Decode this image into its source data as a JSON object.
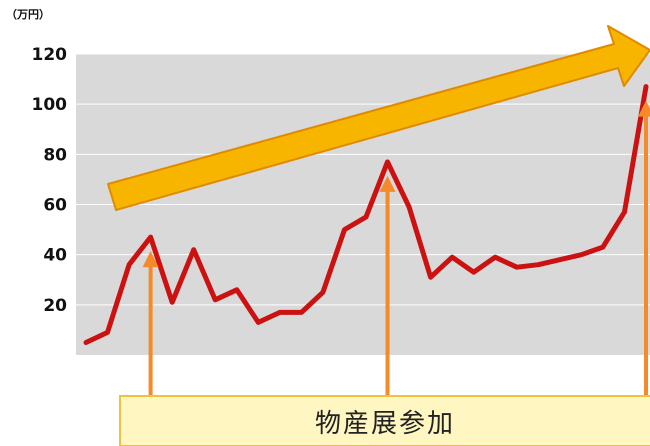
{
  "chart_data": {
    "type": "line",
    "y_unit_label": "（万円）",
    "ylim": [
      0,
      120
    ],
    "y_ticks": [
      20,
      40,
      60,
      80,
      100,
      120
    ],
    "grid": true,
    "series": [
      {
        "color": "#cc1111",
        "values": [
          5,
          9,
          36,
          47,
          21,
          42,
          22,
          26,
          13,
          17,
          17,
          25,
          50,
          55,
          77,
          59,
          31,
          39,
          33,
          39,
          35,
          36,
          38,
          40,
          43,
          57,
          107
        ]
      }
    ],
    "trend_arrow": {
      "color": "#f7b500",
      "outline": "#e08a00"
    },
    "annotation": {
      "text": "物産展参加",
      "box_fill": "#fff6c2",
      "box_stroke": "#f0c040",
      "arrow_color": "#f58a2a",
      "points": [
        3,
        14,
        26
      ]
    },
    "plot_background": "#d9d9d9"
  }
}
